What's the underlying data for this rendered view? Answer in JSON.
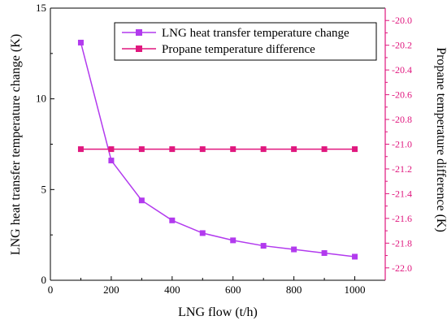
{
  "chart_data": {
    "type": "line",
    "xlabel": "LNG flow (t/h)",
    "ylabel_left": "LNG heat transfer temperature change (K)",
    "ylabel_right": "Propane temperature difference (K)",
    "xlim": [
      0,
      1100
    ],
    "ylim_left": [
      0,
      15
    ],
    "ylim_right": [
      -22.1,
      -19.9
    ],
    "x_ticks": [
      0,
      200,
      400,
      600,
      800,
      1000
    ],
    "y_left_ticks": [
      0,
      5,
      10,
      15
    ],
    "y_right_ticks": [
      -20.0,
      -20.2,
      -20.4,
      -20.6,
      -20.8,
      -21.0,
      -21.2,
      -21.4,
      -21.6,
      -21.8,
      -22.0
    ],
    "legend_position": "top-right",
    "x": [
      100,
      200,
      300,
      400,
      500,
      600,
      700,
      800,
      900,
      1000
    ],
    "series": [
      {
        "name": "LNG heat transfer temperature change",
        "axis": "left",
        "color": "#b23aee",
        "values": [
          13.1,
          6.6,
          4.4,
          3.3,
          2.6,
          2.2,
          1.9,
          1.7,
          1.5,
          1.3
        ]
      },
      {
        "name": "Propane temperature difference",
        "axis": "right",
        "color": "#e0177e",
        "values": [
          -21.04,
          -21.04,
          -21.04,
          -21.04,
          -21.04,
          -21.04,
          -21.04,
          -21.04,
          -21.04,
          -21.04
        ]
      }
    ],
    "colors": {
      "left_axis": "#000000",
      "right_axis": "#e0177e"
    }
  }
}
